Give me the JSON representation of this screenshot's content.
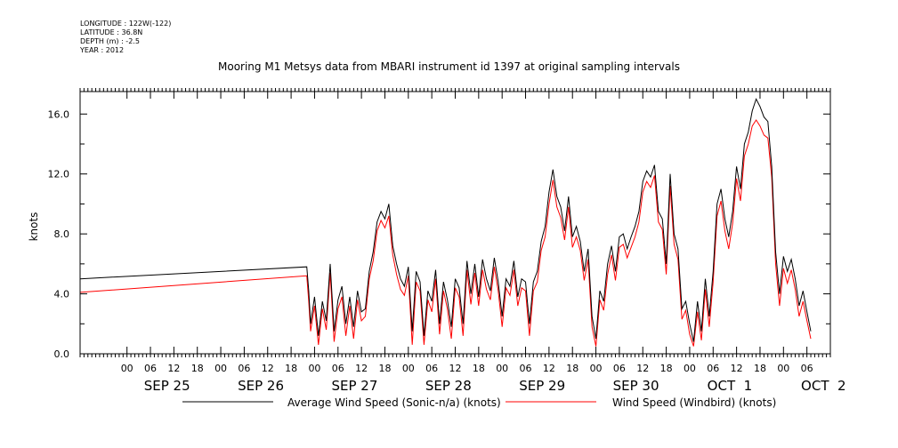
{
  "header": {
    "longitude": "LONGITUDE : 122W(-122)",
    "latitude": "LATITUDE : 36.8N",
    "depth": "DEPTH (m) : -2.5",
    "year": "YEAR : 2012"
  },
  "chart_data": {
    "type": "line",
    "title": "Mooring M1 Metsys data from MBARI instrument id 1397 at original sampling intervals",
    "xlabel": "",
    "ylabel": "knots",
    "x_unit": "hours since SEP 24 12:00",
    "xlim": [
      0,
      192
    ],
    "ylim": [
      0,
      17.5
    ],
    "yticks": [
      0.0,
      4.0,
      8.0,
      12.0,
      16.0
    ],
    "ytick_labels": [
      "0.0",
      "4.0",
      "8.0",
      "12.0",
      "16.0"
    ],
    "hour_ticks": [
      {
        "x": 12,
        "label": "00"
      },
      {
        "x": 18,
        "label": "06"
      },
      {
        "x": 24,
        "label": "12"
      },
      {
        "x": 30,
        "label": "18"
      },
      {
        "x": 36,
        "label": "00"
      },
      {
        "x": 42,
        "label": "06"
      },
      {
        "x": 48,
        "label": "12"
      },
      {
        "x": 54,
        "label": "18"
      },
      {
        "x": 60,
        "label": "00"
      },
      {
        "x": 66,
        "label": "06"
      },
      {
        "x": 72,
        "label": "12"
      },
      {
        "x": 78,
        "label": "18"
      },
      {
        "x": 84,
        "label": "00"
      },
      {
        "x": 90,
        "label": "06"
      },
      {
        "x": 96,
        "label": "12"
      },
      {
        "x": 102,
        "label": "18"
      },
      {
        "x": 108,
        "label": "00"
      },
      {
        "x": 114,
        "label": "06"
      },
      {
        "x": 120,
        "label": "12"
      },
      {
        "x": 126,
        "label": "18"
      },
      {
        "x": 132,
        "label": "00"
      },
      {
        "x": 138,
        "label": "06"
      },
      {
        "x": 144,
        "label": "12"
      },
      {
        "x": 150,
        "label": "18"
      },
      {
        "x": 156,
        "label": "00"
      },
      {
        "x": 162,
        "label": "06"
      },
      {
        "x": 168,
        "label": "12"
      },
      {
        "x": 174,
        "label": "18"
      },
      {
        "x": 180,
        "label": "00"
      },
      {
        "x": 186,
        "label": "06"
      }
    ],
    "day_labels": [
      {
        "x": 12,
        "label": "SEP 25"
      },
      {
        "x": 36,
        "label": "SEP 26"
      },
      {
        "x": 60,
        "label": "SEP 27"
      },
      {
        "x": 84,
        "label": "SEP 28"
      },
      {
        "x": 108,
        "label": "SEP 29"
      },
      {
        "x": 132,
        "label": "SEP 30"
      },
      {
        "x": 156,
        "label": "OCT  1"
      },
      {
        "x": 180,
        "label": "OCT  2"
      }
    ],
    "grid": false,
    "legend": "bottom",
    "series": [
      {
        "name": "Average Wind Speed (Sonic-n/a) (knots)",
        "color": "#000000",
        "x": [
          0,
          58,
          58.5,
          59,
          60,
          61,
          62,
          63,
          64,
          65,
          66,
          67,
          68,
          69,
          70,
          71,
          72,
          73,
          74,
          75,
          76,
          77,
          78,
          79,
          80,
          81,
          82,
          83,
          84,
          85,
          86,
          87,
          88,
          89,
          90,
          91,
          92,
          93,
          94,
          95,
          96,
          97,
          98,
          99,
          100,
          101,
          102,
          103,
          104,
          105,
          106,
          107,
          108,
          109,
          110,
          111,
          112,
          113,
          114,
          115,
          116,
          117,
          118,
          119,
          120,
          121,
          122,
          123,
          124,
          125,
          126,
          127,
          128,
          129,
          130,
          131,
          132,
          133,
          134,
          135,
          136,
          137,
          138,
          139,
          140,
          141,
          142,
          143,
          144,
          145,
          146,
          147,
          148,
          149,
          150,
          151,
          152,
          153,
          154,
          155,
          156,
          157,
          158,
          159,
          160,
          161,
          162,
          163,
          164,
          165,
          166,
          167,
          168,
          169,
          170,
          171,
          172,
          173,
          174,
          175,
          176,
          177,
          178,
          179,
          180,
          181,
          182,
          183,
          184,
          185,
          186,
          187
        ],
        "values": [
          5.0,
          5.8,
          4.2,
          2.0,
          3.8,
          1.2,
          3.5,
          2.2,
          6.0,
          1.5,
          3.6,
          4.5,
          2.0,
          3.8,
          1.8,
          4.2,
          2.8,
          3.0,
          5.5,
          6.8,
          8.8,
          9.5,
          9.0,
          10.0,
          7.2,
          6.0,
          5.0,
          4.5,
          5.8,
          1.5,
          5.5,
          4.8,
          1.2,
          4.2,
          3.5,
          5.6,
          2.0,
          4.8,
          3.6,
          1.8,
          5.0,
          4.4,
          2.0,
          6.2,
          4.0,
          6.0,
          3.8,
          6.3,
          5.0,
          4.2,
          6.4,
          4.8,
          2.5,
          5.0,
          4.5,
          6.2,
          3.8,
          5.0,
          4.8,
          2.0,
          4.8,
          5.5,
          7.5,
          8.5,
          10.8,
          12.3,
          10.5,
          9.8,
          8.2,
          10.5,
          7.8,
          8.5,
          7.5,
          5.5,
          7.0,
          2.5,
          1.0,
          4.2,
          3.5,
          6.0,
          7.2,
          5.5,
          7.8,
          8.0,
          7.0,
          7.8,
          8.5,
          9.5,
          11.5,
          12.2,
          11.8,
          12.6,
          9.5,
          9.0,
          6.0,
          12.0,
          8.0,
          7.0,
          3.0,
          3.5,
          2.0,
          0.8,
          3.5,
          1.5,
          5.0,
          2.5,
          5.5,
          10.0,
          11.0,
          9.0,
          7.8,
          9.5,
          12.5,
          11.0,
          14.0,
          14.8,
          16.2,
          17.0,
          16.5,
          15.8,
          15.5,
          12.5,
          6.8,
          4.0,
          6.5,
          5.5,
          6.3,
          5.0,
          3.2,
          4.2,
          2.8,
          1.5
        ]
      },
      {
        "name": "Wind Speed (Windbird) (knots)",
        "color": "#ff0000",
        "x": [
          0,
          58,
          58.5,
          59,
          60,
          61,
          62,
          63,
          64,
          65,
          66,
          67,
          68,
          69,
          70,
          71,
          72,
          73,
          74,
          75,
          76,
          77,
          78,
          79,
          80,
          81,
          82,
          83,
          84,
          85,
          86,
          87,
          88,
          89,
          90,
          91,
          92,
          93,
          94,
          95,
          96,
          97,
          98,
          99,
          100,
          101,
          102,
          103,
          104,
          105,
          106,
          107,
          108,
          109,
          110,
          111,
          112,
          113,
          114,
          115,
          116,
          117,
          118,
          119,
          120,
          121,
          122,
          123,
          124,
          125,
          126,
          127,
          128,
          129,
          130,
          131,
          132,
          133,
          134,
          135,
          136,
          137,
          138,
          139,
          140,
          141,
          142,
          143,
          144,
          145,
          146,
          147,
          148,
          149,
          150,
          151,
          152,
          153,
          154,
          155,
          156,
          157,
          158,
          159,
          160,
          161,
          162,
          163,
          164,
          165,
          166,
          167,
          168,
          169,
          170,
          171,
          172,
          173,
          174,
          175,
          176,
          177,
          178,
          179,
          180,
          181,
          182,
          183,
          184,
          185,
          186,
          187
        ],
        "values": [
          4.1,
          5.2,
          3.5,
          1.5,
          3.2,
          0.6,
          3.0,
          1.6,
          5.4,
          0.8,
          3.0,
          3.8,
          1.2,
          3.2,
          1.0,
          3.6,
          2.2,
          2.5,
          5.0,
          6.2,
          8.2,
          8.9,
          8.4,
          9.2,
          6.6,
          5.3,
          4.3,
          3.9,
          5.2,
          0.6,
          4.8,
          4.2,
          0.6,
          3.6,
          2.8,
          5.0,
          1.3,
          4.2,
          3.0,
          1.0,
          4.4,
          3.8,
          1.2,
          5.6,
          3.3,
          5.4,
          3.2,
          5.6,
          4.3,
          3.6,
          5.8,
          4.2,
          1.8,
          4.4,
          3.9,
          5.6,
          3.2,
          4.4,
          4.2,
          1.2,
          4.2,
          4.8,
          6.9,
          7.8,
          10.0,
          11.6,
          9.8,
          9.1,
          7.6,
          9.8,
          7.1,
          7.8,
          6.9,
          4.9,
          6.3,
          1.8,
          0.5,
          3.6,
          2.9,
          5.3,
          6.6,
          4.9,
          7.1,
          7.3,
          6.4,
          7.1,
          7.8,
          8.8,
          10.8,
          11.5,
          11.1,
          11.9,
          8.8,
          8.3,
          5.3,
          11.2,
          7.3,
          6.3,
          2.3,
          2.9,
          1.3,
          0.5,
          2.8,
          0.9,
          4.3,
          1.8,
          4.8,
          9.2,
          10.2,
          8.2,
          7.0,
          8.7,
          11.7,
          10.2,
          13.2,
          14.0,
          15.2,
          15.6,
          15.2,
          14.6,
          14.4,
          11.8,
          6.0,
          3.2,
          5.7,
          4.7,
          5.6,
          4.3,
          2.5,
          3.5,
          2.2,
          1.0
        ]
      }
    ]
  }
}
